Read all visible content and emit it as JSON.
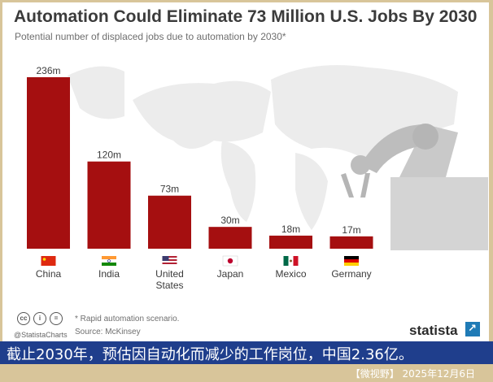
{
  "chart_data": {
    "type": "bar",
    "title": "Automation Could Eliminate 73 Million U.S. Jobs By 2030",
    "subtitle": "Potential number of displaced jobs due to automation by 2030*",
    "categories": [
      "China",
      "India",
      "United States",
      "Japan",
      "Mexico",
      "Germany"
    ],
    "category_lines": [
      [
        "China"
      ],
      [
        "India"
      ],
      [
        "United",
        "States"
      ],
      [
        "Japan"
      ],
      [
        "Mexico"
      ],
      [
        "Germany"
      ]
    ],
    "values": [
      236,
      120,
      73,
      30,
      18,
      17
    ],
    "value_labels": [
      "236m",
      "120m",
      "73m",
      "30m",
      "18m",
      "17m"
    ],
    "units": "millions",
    "flags": [
      "china-flag",
      "india-flag",
      "usa-flag",
      "japan-flag",
      "mexico-flag",
      "germany-flag"
    ],
    "bar_color": "#a50f10",
    "grid": false
  },
  "footnote": "* Rapid automation scenario.",
  "source": "Source: McKinsey",
  "credit": "@StatistaCharts",
  "brand": "statista",
  "caption": "截止2030年，预估因自动化而减少的工作岗位，中国2.36亿。",
  "date": "【微视野】 2025年12月6日"
}
